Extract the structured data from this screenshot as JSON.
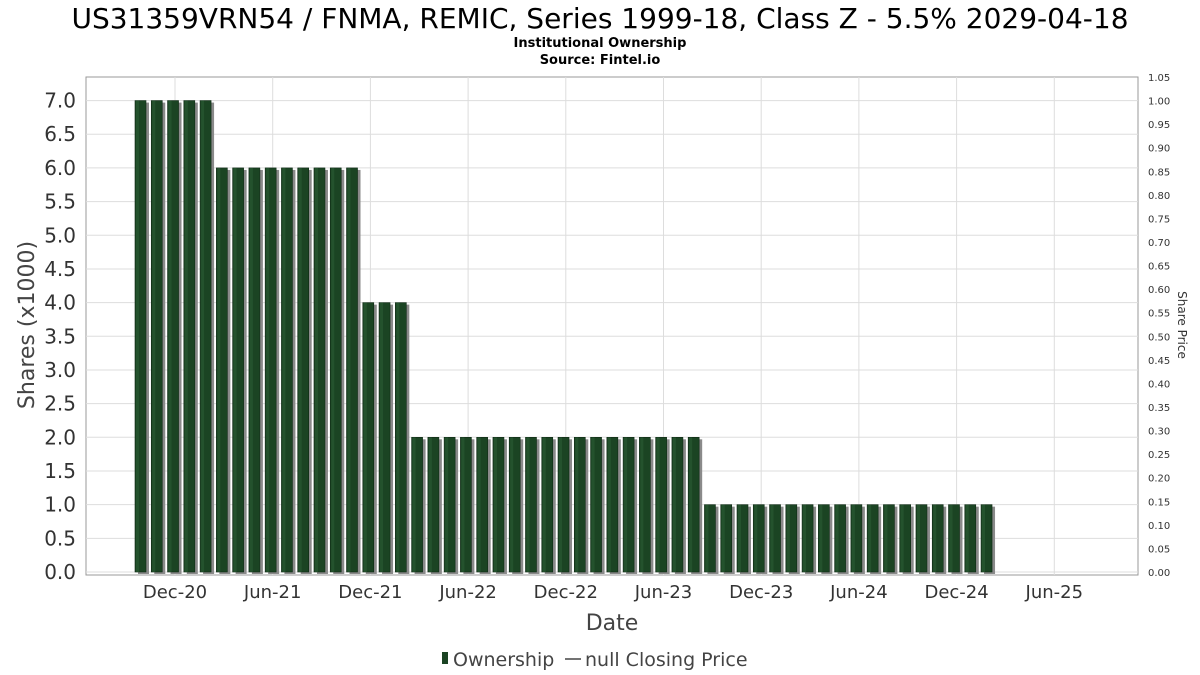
{
  "chart_data": {
    "type": "bar",
    "title": "US31359VRN54 / FNMA, REMIC, Series 1999-18, Class Z - 5.5% 2029-04-18",
    "subtitle_lines": [
      "Institutional Ownership",
      "Source: Fintel.io"
    ],
    "xlabel": "Date",
    "ylabel": "Shares (x1000)",
    "ylabel_right": "Share Price",
    "ylim": [
      0,
      7.35
    ],
    "ylim_right": [
      0,
      1.05
    ],
    "yticks": [
      "0.0",
      "0.5",
      "1.0",
      "1.5",
      "2.0",
      "2.5",
      "3.0",
      "3.5",
      "4.0",
      "4.5",
      "5.0",
      "5.5",
      "6.0",
      "6.5",
      "7.0"
    ],
    "yticks_right": [
      "0.00",
      "0.05",
      "0.10",
      "0.15",
      "0.20",
      "0.25",
      "0.30",
      "0.35",
      "0.40",
      "0.45",
      "0.50",
      "0.55",
      "0.60",
      "0.65",
      "0.70",
      "0.75",
      "0.80",
      "0.85",
      "0.90",
      "0.95",
      "1.00",
      "1.05"
    ],
    "xticks": [
      "Dec-20",
      "Jun-21",
      "Dec-21",
      "Jun-22",
      "Dec-22",
      "Jun-23",
      "Dec-23",
      "Jun-24",
      "Dec-24",
      "Jun-25"
    ],
    "grid": true,
    "bar_color": "#1b4423",
    "bar_shadow_color": "#8a8a8a",
    "series": [
      {
        "name": "Ownership",
        "values": [
          7.0,
          7.0,
          7.0,
          7.0,
          7.0,
          6.0,
          6.0,
          6.0,
          6.0,
          6.0,
          6.0,
          6.0,
          6.0,
          6.0,
          4.0,
          4.0,
          4.0,
          2.0,
          2.0,
          2.0,
          2.0,
          2.0,
          2.0,
          2.0,
          2.0,
          2.0,
          2.0,
          2.0,
          2.0,
          2.0,
          2.0,
          2.0,
          2.0,
          2.0,
          2.0,
          1.0,
          1.0,
          1.0,
          1.0,
          1.0,
          1.0,
          1.0,
          1.0,
          1.0,
          1.0,
          1.0,
          1.0,
          1.0,
          1.0,
          1.0,
          1.0,
          1.0,
          1.0
        ]
      }
    ],
    "legend": {
      "placement": "bottom-center",
      "items": [
        {
          "label": "Ownership",
          "marker": "bar"
        },
        {
          "label": "null Closing Price",
          "marker": "line"
        }
      ]
    }
  }
}
